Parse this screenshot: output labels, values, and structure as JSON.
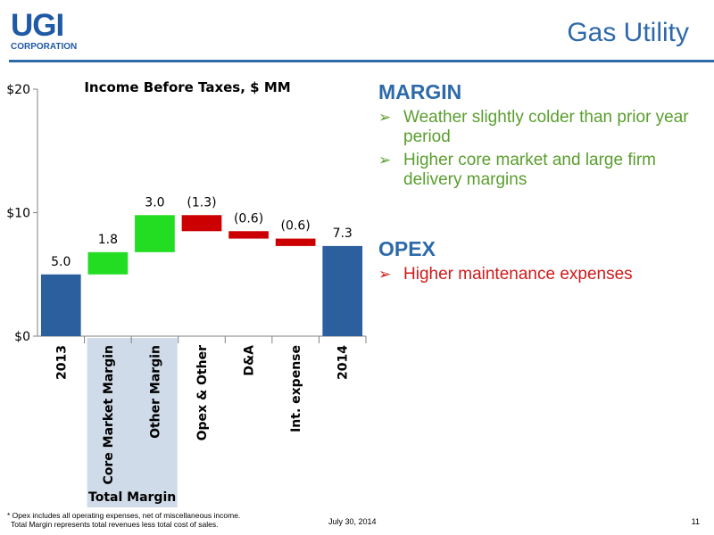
{
  "header": {
    "logo_text": "UGI",
    "logo_subtext": "CORPORATION",
    "title": "Gas Utility"
  },
  "colors": {
    "brand_blue": "#2e6aaa",
    "total_bar": "#2c5f9e",
    "increase_bar": "#22dd22",
    "decrease_bar": "#cc0000",
    "margin_text": "#5a9e2e",
    "opex_text": "#d11a1a",
    "total_margin_band": "#cfdbe9"
  },
  "chart_data": {
    "type": "waterfall",
    "title": "Income Before Taxes, $ MM",
    "categories": [
      "2013",
      "Core Market Margin",
      "Other Margin",
      "Opex & Other",
      "D&A",
      "Int. expense",
      "2014"
    ],
    "values": [
      5.0,
      1.8,
      3.0,
      -1.3,
      -0.6,
      -0.6,
      7.3
    ],
    "kinds": [
      "total",
      "increase",
      "increase",
      "decrease",
      "decrease",
      "decrease",
      "total"
    ],
    "data_labels": [
      "5.0",
      "1.8",
      "3.0",
      "(1.3)",
      "(0.6)",
      "(0.6)",
      "7.3"
    ],
    "ylim": [
      0,
      20
    ],
    "yticks": [
      0,
      10,
      20
    ],
    "ytick_labels": [
      "$0",
      "$10",
      "$20"
    ],
    "group_label": "Total Margin",
    "group_categories": [
      "Core Market Margin",
      "Other Margin"
    ],
    "grid": false
  },
  "margin": {
    "heading": "MARGIN",
    "bullets": [
      "Weather slightly colder than prior year period",
      "Higher core market and large firm delivery margins"
    ]
  },
  "opex": {
    "heading": "OPEX",
    "bullets": [
      "Higher maintenance expenses"
    ]
  },
  "bullet_glyph": "➢",
  "footer": {
    "footnote_line1": "* Opex includes all operating expenses, net of miscellaneous income.",
    "footnote_line2": "Total Margin represents total revenues less total cost of sales.",
    "date": "July 30, 2014",
    "page_number": "11"
  }
}
